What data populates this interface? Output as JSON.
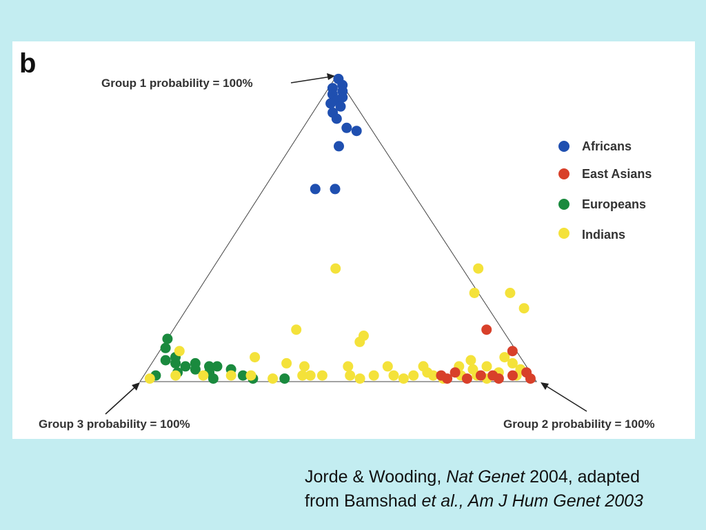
{
  "panel_letter": "b",
  "corner_labels": {
    "group1": "Group 1 probability = 100%",
    "group2": "Group 2 probability = 100%",
    "group3": "Group 3 probability = 100%"
  },
  "citation": {
    "line1_a": "Jorde & Wooding, ",
    "line1_b": "Nat Genet",
    "line1_c": " 2004, adapted",
    "line2_a": "from Bamshad ",
    "line2_b": "et al., Am J Hum Genet 2003"
  },
  "colors": {
    "background": "#c3edf1",
    "Africans": "#1f4fb0",
    "East Asians": "#d8402a",
    "Europeans": "#1a8a3e",
    "Indians": "#f4e23a"
  },
  "chart_data": {
    "type": "scatter",
    "coordinate_system": "ternary",
    "legend_position": "right",
    "series": [
      {
        "name": "Africans",
        "points": [
          {
            "g1": 0.99,
            "g2": 0.01,
            "g3": 0.0
          },
          {
            "g1": 0.97,
            "g2": 0.03,
            "g3": 0.0
          },
          {
            "g1": 0.96,
            "g2": 0.01,
            "g3": 0.03
          },
          {
            "g1": 0.95,
            "g2": 0.04,
            "g3": 0.01
          },
          {
            "g1": 0.94,
            "g2": 0.02,
            "g3": 0.04
          },
          {
            "g1": 0.93,
            "g2": 0.05,
            "g3": 0.02
          },
          {
            "g1": 0.92,
            "g2": 0.04,
            "g3": 0.04
          },
          {
            "g1": 0.91,
            "g2": 0.03,
            "g3": 0.06
          },
          {
            "g1": 0.9,
            "g2": 0.06,
            "g3": 0.04
          },
          {
            "g1": 0.88,
            "g2": 0.05,
            "g3": 0.07
          },
          {
            "g1": 0.86,
            "g2": 0.07,
            "g3": 0.07
          },
          {
            "g1": 0.83,
            "g2": 0.11,
            "g3": 0.06
          },
          {
            "g1": 0.82,
            "g2": 0.14,
            "g3": 0.04
          },
          {
            "g1": 0.77,
            "g2": 0.12,
            "g3": 0.11
          },
          {
            "g1": 0.63,
            "g2": 0.13,
            "g3": 0.24
          },
          {
            "g1": 0.63,
            "g2": 0.18,
            "g3": 0.19
          }
        ]
      },
      {
        "name": "East Asians",
        "points": [
          {
            "g1": 0.17,
            "g2": 0.79,
            "g3": 0.04
          },
          {
            "g1": 0.1,
            "g2": 0.89,
            "g3": 0.01
          },
          {
            "g1": 0.03,
            "g2": 0.96,
            "g3": 0.01
          },
          {
            "g1": 0.01,
            "g2": 0.98,
            "g3": 0.01
          },
          {
            "g1": 0.02,
            "g2": 0.93,
            "g3": 0.05
          },
          {
            "g1": 0.01,
            "g2": 0.9,
            "g3": 0.09
          },
          {
            "g1": 0.02,
            "g2": 0.85,
            "g3": 0.13
          },
          {
            "g1": 0.01,
            "g2": 0.82,
            "g3": 0.17
          },
          {
            "g1": 0.03,
            "g2": 0.78,
            "g3": 0.19
          },
          {
            "g1": 0.02,
            "g2": 0.75,
            "g3": 0.23
          },
          {
            "g1": 0.01,
            "g2": 0.77,
            "g3": 0.22
          },
          {
            "g1": 0.02,
            "g2": 0.88,
            "g3": 0.1
          }
        ]
      },
      {
        "name": "Europeans",
        "points": [
          {
            "g1": 0.14,
            "g2": 0.0,
            "g3": 0.86
          },
          {
            "g1": 0.11,
            "g2": 0.01,
            "g3": 0.88
          },
          {
            "g1": 0.07,
            "g2": 0.03,
            "g3": 0.9
          },
          {
            "g1": 0.08,
            "g2": 0.05,
            "g3": 0.87
          },
          {
            "g1": 0.06,
            "g2": 0.06,
            "g3": 0.88
          },
          {
            "g1": 0.05,
            "g2": 0.09,
            "g3": 0.86
          },
          {
            "g1": 0.06,
            "g2": 0.11,
            "g3": 0.83
          },
          {
            "g1": 0.04,
            "g2": 0.12,
            "g3": 0.84
          },
          {
            "g1": 0.05,
            "g2": 0.15,
            "g3": 0.8
          },
          {
            "g1": 0.03,
            "g2": 0.08,
            "g3": 0.89
          },
          {
            "g1": 0.02,
            "g2": 0.03,
            "g3": 0.95
          },
          {
            "g1": 0.03,
            "g2": 0.16,
            "g3": 0.81
          },
          {
            "g1": 0.01,
            "g2": 0.18,
            "g3": 0.81
          },
          {
            "g1": 0.04,
            "g2": 0.21,
            "g3": 0.75
          },
          {
            "g1": 0.01,
            "g2": 0.28,
            "g3": 0.71
          },
          {
            "g1": 0.01,
            "g2": 0.36,
            "g3": 0.63
          },
          {
            "g1": 0.02,
            "g2": 0.25,
            "g3": 0.73
          },
          {
            "g1": 0.05,
            "g2": 0.17,
            "g3": 0.78
          }
        ]
      },
      {
        "name": "Indians",
        "points": [
          {
            "g1": 0.37,
            "g2": 0.31,
            "g3": 0.32
          },
          {
            "g1": 0.37,
            "g2": 0.67,
            "g3": -0.04
          },
          {
            "g1": 0.29,
            "g2": 0.7,
            "g3": 0.01
          },
          {
            "g1": 0.29,
            "g2": 0.79,
            "g3": -0.08
          },
          {
            "g1": 0.24,
            "g2": 0.85,
            "g3": -0.09
          },
          {
            "g1": 0.17,
            "g2": 0.31,
            "g3": 0.52
          },
          {
            "g1": 0.15,
            "g2": 0.49,
            "g3": 0.36
          },
          {
            "g1": 0.13,
            "g2": 0.49,
            "g3": 0.38
          },
          {
            "g1": 0.1,
            "g2": 0.05,
            "g3": 0.85
          },
          {
            "g1": 0.08,
            "g2": 0.25,
            "g3": 0.67
          },
          {
            "g1": 0.06,
            "g2": 0.34,
            "g3": 0.6
          },
          {
            "g1": 0.05,
            "g2": 0.39,
            "g3": 0.56
          },
          {
            "g1": 0.05,
            "g2": 0.5,
            "g3": 0.45
          },
          {
            "g1": 0.05,
            "g2": 0.6,
            "g3": 0.35
          },
          {
            "g1": 0.05,
            "g2": 0.69,
            "g3": 0.26
          },
          {
            "g1": 0.05,
            "g2": 0.78,
            "g3": 0.17
          },
          {
            "g1": 0.05,
            "g2": 0.85,
            "g3": 0.1
          },
          {
            "g1": 0.08,
            "g2": 0.88,
            "g3": 0.04
          },
          {
            "g1": 0.06,
            "g2": 0.91,
            "g3": 0.03
          },
          {
            "g1": 0.04,
            "g2": 0.94,
            "g3": 0.02
          },
          {
            "g1": 0.02,
            "g2": 0.4,
            "g3": 0.58
          },
          {
            "g1": 0.02,
            "g2": 0.45,
            "g3": 0.53
          },
          {
            "g1": 0.02,
            "g2": 0.52,
            "g3": 0.46
          },
          {
            "g1": 0.02,
            "g2": 0.58,
            "g3": 0.4
          },
          {
            "g1": 0.02,
            "g2": 0.63,
            "g3": 0.35
          },
          {
            "g1": 0.02,
            "g2": 0.68,
            "g3": 0.3
          },
          {
            "g1": 0.02,
            "g2": 0.73,
            "g3": 0.25
          },
          {
            "g1": 0.02,
            "g2": 0.8,
            "g3": 0.18
          },
          {
            "g1": 0.02,
            "g2": 0.84,
            "g3": 0.14
          },
          {
            "g1": 0.03,
            "g2": 0.89,
            "g3": 0.08
          },
          {
            "g1": 0.01,
            "g2": 0.02,
            "g3": 0.97
          },
          {
            "g1": 0.02,
            "g2": 0.08,
            "g3": 0.9
          },
          {
            "g1": 0.02,
            "g2": 0.15,
            "g3": 0.83
          },
          {
            "g1": 0.02,
            "g2": 0.22,
            "g3": 0.76
          },
          {
            "g1": 0.02,
            "g2": 0.27,
            "g3": 0.71
          },
          {
            "g1": 0.01,
            "g2": 0.33,
            "g3": 0.66
          },
          {
            "g1": 0.02,
            "g2": 0.42,
            "g3": 0.56
          },
          {
            "g1": 0.01,
            "g2": 0.55,
            "g3": 0.44
          },
          {
            "g1": 0.01,
            "g2": 0.66,
            "g3": 0.33
          },
          {
            "g1": 0.01,
            "g2": 0.76,
            "g3": 0.23
          },
          {
            "g1": 0.01,
            "g2": 0.87,
            "g3": 0.12
          },
          {
            "g1": 0.02,
            "g2": 0.94,
            "g3": 0.04
          },
          {
            "g1": 0.04,
            "g2": 0.82,
            "g3": 0.14
          },
          {
            "g1": 0.07,
            "g2": 0.8,
            "g3": 0.13
          },
          {
            "g1": 0.03,
            "g2": 0.71,
            "g3": 0.26
          }
        ]
      }
    ]
  }
}
